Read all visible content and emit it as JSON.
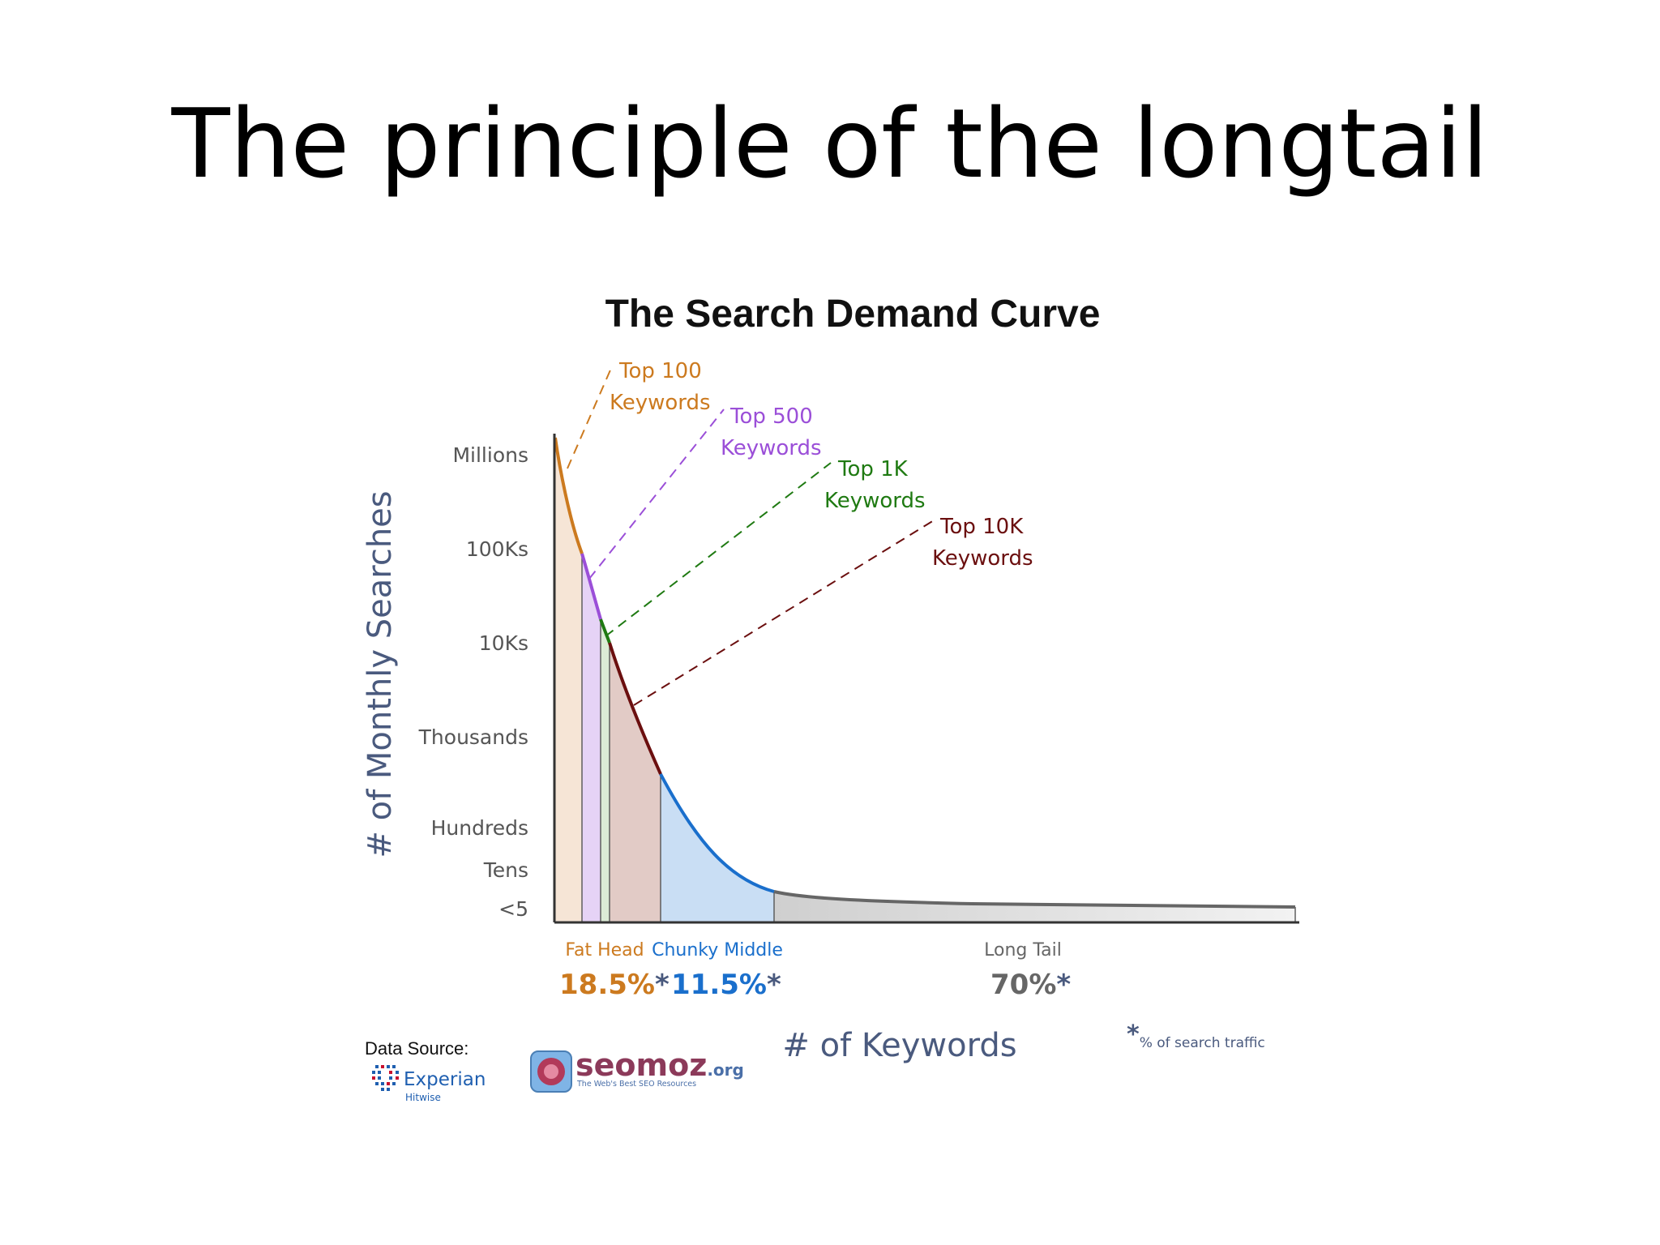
{
  "slide": {
    "title": "The principle of the longtail"
  },
  "chart_data": {
    "type": "area",
    "title": "The Search Demand Curve",
    "ylabel": "# of Monthly Searches",
    "xlabel": "# of Keywords",
    "y_ticks": [
      "Millions",
      "100Ks",
      "10Ks",
      "Thousands",
      "Hundreds",
      "Tens",
      "<5"
    ],
    "keyword_markers": [
      {
        "line1": "Top 100",
        "line2": "Keywords",
        "color": "#cc7a1f"
      },
      {
        "line1": "Top 500",
        "line2": "Keywords",
        "color": "#9b4fd8"
      },
      {
        "line1": "Top 1K",
        "line2": "Keywords",
        "color": "#1f7a12"
      },
      {
        "line1": "Top 10K",
        "line2": "Keywords",
        "color": "#6b0f0f"
      }
    ],
    "segments": [
      {
        "name": "Fat Head",
        "share_percent": 18.5,
        "share_label": "18.5%",
        "color": "#cc7a1f"
      },
      {
        "name": "Chunky Middle",
        "share_percent": 11.5,
        "share_label": "11.5%",
        "color": "#1a6fcc"
      },
      {
        "name": "Long Tail",
        "share_percent": 70,
        "share_label": "70%",
        "color": "#666666"
      }
    ],
    "asterisk": "*",
    "footnote": "% of search traffic",
    "grid": false
  },
  "sources": {
    "label": "Data Source:",
    "experian_name": "Experian",
    "experian_sub": "Hitwise",
    "seomoz_name": "seomoz",
    "seomoz_tld": ".org",
    "seomoz_tagline": "The Web's Best SEO Resources"
  }
}
